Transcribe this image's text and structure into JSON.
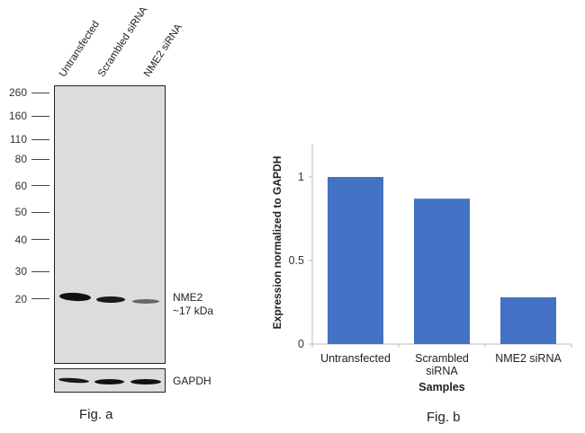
{
  "figure_a": {
    "lanes": [
      "Untransfected",
      "Scrambled siRNA",
      "NME2 siRNA"
    ],
    "mw_markers": [
      "260",
      "160",
      "110",
      "80",
      "60",
      "50",
      "40",
      "30",
      "20"
    ],
    "target_label_line1": "NME2",
    "target_label_line2": "~17 kDa",
    "loading_control_label": "GAPDH",
    "caption": "Fig. a"
  },
  "figure_b": {
    "caption": "Fig. b"
  },
  "chart_data": {
    "type": "bar",
    "title": "",
    "categories": [
      "Untransfected",
      "Scrambled siRNA",
      "NME2 siRNA"
    ],
    "category_label_lines": [
      [
        "Untransfected"
      ],
      [
        "Scrambled",
        "siRNA"
      ],
      [
        "NME2 siRNA"
      ]
    ],
    "values": [
      1.0,
      0.87,
      0.28
    ],
    "xlabel": "Samples",
    "ylabel": "Expression normalized to GAPDH",
    "ylim": [
      0,
      1.2
    ],
    "yticks": [
      0,
      0.5,
      1
    ],
    "ytick_labels": [
      "0",
      "0.5",
      "1"
    ],
    "grid": false,
    "legend": "none",
    "bar_color": "#4472c4"
  }
}
